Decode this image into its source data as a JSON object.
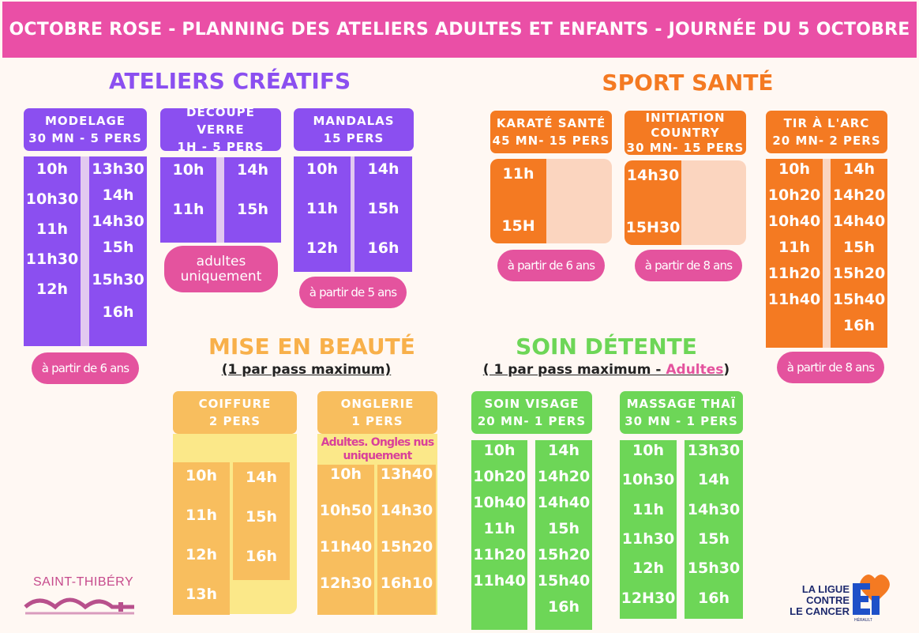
{
  "banner": {
    "title": "OCTOBRE ROSE - PLANNING DES ATELIERS ADULTES ET ENFANTS - JOURNÉE DU 5 OCTOBRE"
  },
  "colors": {
    "pink": "#ea4fa6",
    "purple": "#8b4ff0",
    "orange": "#f47a22",
    "yellow": "#f8be5e",
    "green": "#6dd657"
  },
  "creatifs": {
    "title": "ATELIERS CRÉATIFS",
    "modelage": {
      "line1": "MODELAGE",
      "line2": "30 MN - 5 PERS",
      "col1": [
        "10h",
        "10h30",
        "11h",
        "11h30",
        "12h"
      ],
      "col2": [
        "13h30",
        "14h",
        "14h30",
        "15h",
        "15h30",
        "16h"
      ],
      "note": "à partir de 6 ans"
    },
    "decoupe": {
      "line1": "DÉCOUPE VERRE",
      "line2": "1H - 5 PERS",
      "col1": [
        "10h",
        "11h"
      ],
      "col2": [
        "14h",
        "15h"
      ],
      "note": "adultes uniquement"
    },
    "mandalas": {
      "line1": "MANDALAS",
      "line2": "15 PERS",
      "col1": [
        "10h",
        "11h",
        "12h"
      ],
      "col2": [
        "14h",
        "15h",
        "16h"
      ],
      "note": "à partir de 5 ans"
    }
  },
  "sport": {
    "title": "SPORT SANTÉ",
    "karate": {
      "line1": "KARATÉ SANTÉ",
      "line2": "45 MN- 15 PERS",
      "col1": [
        "11h",
        "15H"
      ],
      "note": "à partir de 6 ans"
    },
    "country": {
      "line1": "INITIATION",
      "line2": "COUNTRY",
      "line3": "30 MN- 15 PERS",
      "col1": [
        "14h30",
        "15H30"
      ],
      "note": "à partir de 8 ans"
    },
    "arc": {
      "line1": "TIR À L'ARC",
      "line2": "20 MN- 2 PERS",
      "col1": [
        "10h",
        "10h20",
        "10h40",
        "11h",
        "11h20",
        "11h40"
      ],
      "col2": [
        "14h",
        "14h20",
        "14h40",
        "15h",
        "15h20",
        "15h40",
        "16h"
      ],
      "note": "à partir de 8 ans"
    }
  },
  "beaute": {
    "title": "MISE EN BEAUTÉ",
    "subtitle": "(1 par pass maximum)",
    "coiffure": {
      "line1": "COIFFURE",
      "line2": "2 PERS",
      "col1": [
        "10h",
        "11h",
        "12h",
        "13h"
      ],
      "col2": [
        "14h",
        "15h",
        "16h"
      ]
    },
    "onglerie": {
      "line1": "ONGLERIE",
      "line2": "1 PERS",
      "note": "Adultes. Ongles nus uniquement",
      "col1": [
        "10h",
        "10h50",
        "11h40",
        "12h30"
      ],
      "col2": [
        "13h40",
        "14h30",
        "15h20",
        "16h10"
      ]
    }
  },
  "detente": {
    "title": "SOIN DÉTENTE",
    "subtitle_pre": "( 1 par pass maximum - ",
    "subtitle_link": "Adultes",
    "subtitle_post": ")",
    "visage": {
      "line1": "SOIN VISAGE",
      "line2": "20 MN- 1 PERS",
      "col1": [
        "10h",
        "10h20",
        "10h40",
        "11h",
        "11h20",
        "11h40"
      ],
      "col2": [
        "14h",
        "14h20",
        "14h40",
        "15h",
        "15h20",
        "15h40",
        "16h"
      ]
    },
    "massage": {
      "line1": "MASSAGE THAÏ",
      "line2": "30 MN - 1 PERS",
      "col1": [
        "10h",
        "10h30",
        "11h",
        "11h30",
        "12h",
        "12H30"
      ],
      "col2": [
        "13h30",
        "14h",
        "14h30",
        "15h",
        "15h30",
        "16h"
      ]
    }
  },
  "logos": {
    "town": "SAINT-THIBÉRY",
    "ligue1": "LA LIGUE",
    "ligue2": "CONTRE",
    "ligue3": "LE CANCER",
    "ligue_region": "HÉRAULT"
  }
}
